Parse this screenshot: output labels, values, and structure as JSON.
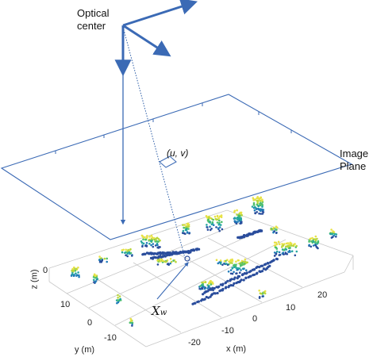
{
  "labels": {
    "optical_center_line1": "Optical",
    "optical_center_line2": "center",
    "image_plane_line1": "Image",
    "image_plane_line2": "Plane",
    "pixel_coord": "(u, v)",
    "world_point_main": "X",
    "world_point_sub": "w"
  },
  "axes": {
    "z_label": "z (m)",
    "y_label": "y (m)",
    "x_label": "x (m)",
    "z_ticks": [
      "0"
    ],
    "y_ticks": [
      "10",
      "0",
      "-10"
    ],
    "x_ticks": [
      "-20",
      "-10",
      "0",
      "10",
      "20"
    ]
  },
  "colors": {
    "frame": "#3b6ab5",
    "ray": "#2f5fa8",
    "grid": "#c8c8c8",
    "points": [
      "#2a4d9c",
      "#1f7bb8",
      "#24a6a0",
      "#4cbf6b",
      "#b9d63c",
      "#e8e245"
    ]
  }
}
